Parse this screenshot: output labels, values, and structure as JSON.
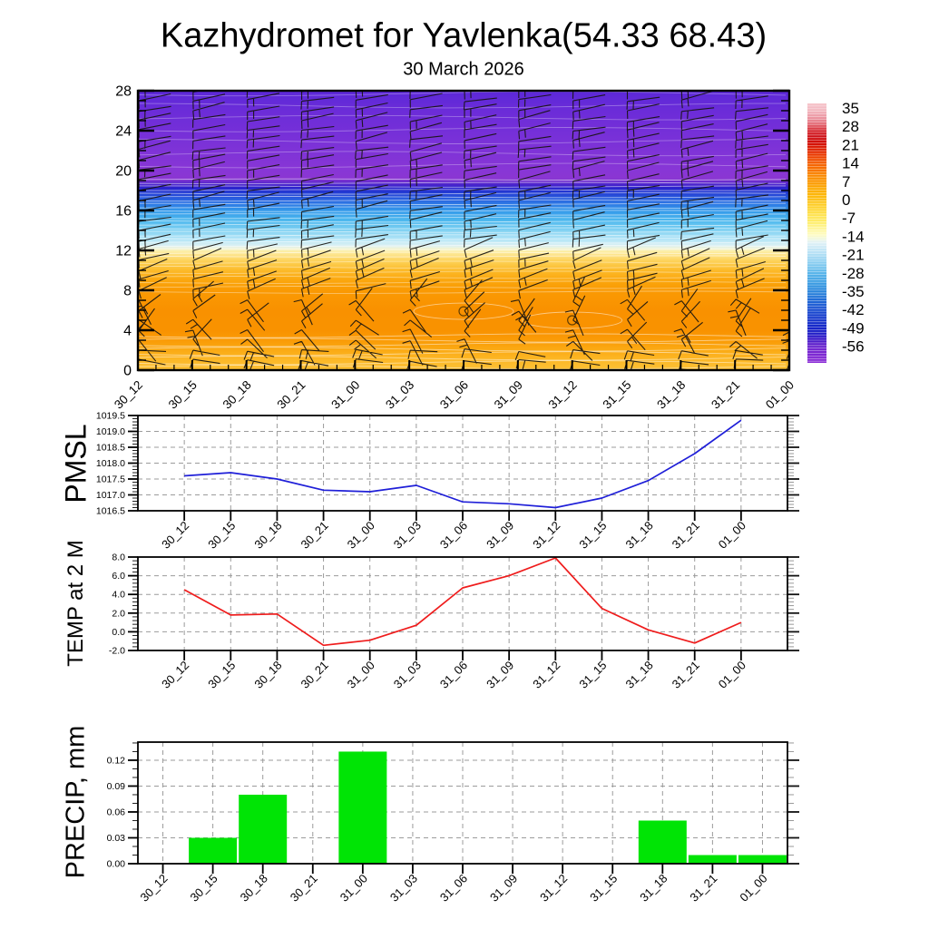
{
  "header": {
    "title": "Kazhydromet for Yavlenka(54.33 68.43)",
    "subtitle": "30 March 2026"
  },
  "time_labels": [
    "30_12",
    "30_15",
    "30_18",
    "30_21",
    "31_00",
    "31_03",
    "31_06",
    "31_09",
    "31_12",
    "31_15",
    "31_18",
    "31_21",
    "01_00"
  ],
  "style": {
    "grid_color": "#9b9b9b",
    "axis_color": "#000000",
    "barb_color": "#17130f",
    "contour_color": "#ffffff"
  },
  "chart_data": [
    {
      "id": "temperature_height_cross_section",
      "type": "heatmap",
      "title": "30 March 2026",
      "x_categories": [
        "30_12",
        "30_15",
        "30_18",
        "30_21",
        "31_00",
        "31_03",
        "31_06",
        "31_09",
        "31_12",
        "31_15",
        "31_18",
        "31_21",
        "01_00"
      ],
      "y_axis": {
        "min": 0,
        "max": 28,
        "tick_labels": [
          "28",
          "24",
          "20",
          "16",
          "12",
          "8",
          "4",
          "0"
        ],
        "minor_step": 1
      },
      "colorbar": {
        "tick_labels": [
          "35",
          "28",
          "21",
          "14",
          "7",
          "0",
          "-7",
          "-14",
          "-21",
          "-28",
          "-35",
          "-42",
          "-49",
          "-56"
        ],
        "gradient_top_to_bottom": [
          [
            0,
            "#f6c6cc"
          ],
          [
            3,
            "#f2b3bc"
          ],
          [
            6,
            "#ea8f9b"
          ],
          [
            8.5,
            "#e05a64"
          ],
          [
            10.5,
            "#d62a31"
          ],
          [
            13,
            "#cd1016"
          ],
          [
            15.5,
            "#d31208"
          ],
          [
            18,
            "#e12500"
          ],
          [
            20.5,
            "#ed4200"
          ],
          [
            23,
            "#f35d00"
          ],
          [
            25.5,
            "#f87500"
          ],
          [
            28,
            "#fa8900"
          ],
          [
            30.5,
            "#fb9900"
          ],
          [
            33,
            "#fcaa00"
          ],
          [
            35.5,
            "#fdb90d"
          ],
          [
            38,
            "#fdc61f"
          ],
          [
            40.5,
            "#fed534"
          ],
          [
            43,
            "#fee24d"
          ],
          [
            45.5,
            "#feec6a"
          ],
          [
            48,
            "#fef594"
          ],
          [
            50.5,
            "#fefbc0"
          ],
          [
            52,
            "#f2f8da"
          ],
          [
            53.5,
            "#e2f2f6"
          ],
          [
            56,
            "#c8e8f6"
          ],
          [
            58.5,
            "#abdcf4"
          ],
          [
            61,
            "#8fd0f1"
          ],
          [
            63.5,
            "#70c2ed"
          ],
          [
            66,
            "#55b2e9"
          ],
          [
            68.5,
            "#3fa1e4"
          ],
          [
            71,
            "#3090df"
          ],
          [
            73.5,
            "#277eda"
          ],
          [
            76,
            "#2169d6"
          ],
          [
            78.5,
            "#1c55d2"
          ],
          [
            81,
            "#1844ce"
          ],
          [
            83.5,
            "#1635cb"
          ],
          [
            86,
            "#1629c9"
          ],
          [
            88.5,
            "#1d1ec7"
          ],
          [
            90.5,
            "#3519c8"
          ],
          [
            92.5,
            "#5b1fcb"
          ],
          [
            95,
            "#7526d0"
          ],
          [
            100,
            "#8c2ed6"
          ]
        ]
      },
      "fill_gradient_top_to_bottom": [
        [
          0,
          "#5b28d8"
        ],
        [
          7,
          "#6b2cd8"
        ],
        [
          14,
          "#742fd8"
        ],
        [
          21,
          "#7e33d7"
        ],
        [
          28.5,
          "#8836d6"
        ],
        [
          31.5,
          "#8a36d2"
        ],
        [
          33.3,
          "#5326cc"
        ],
        [
          34.8,
          "#2a22cc"
        ],
        [
          36.2,
          "#2338d2"
        ],
        [
          39,
          "#2a64e0"
        ],
        [
          42.8,
          "#3398ea"
        ],
        [
          46.4,
          "#4db8ee"
        ],
        [
          50,
          "#82d2f2"
        ],
        [
          53.5,
          "#b8e7f7"
        ],
        [
          55.4,
          "#daf0f3"
        ],
        [
          56.4,
          "#f0f4da"
        ],
        [
          57.5,
          "#fdeea4"
        ],
        [
          59,
          "#fde184"
        ],
        [
          60.8,
          "#fdd35b"
        ],
        [
          64.3,
          "#fcba29"
        ],
        [
          67.8,
          "#fba70e"
        ],
        [
          71.4,
          "#fa9a03"
        ],
        [
          78.5,
          "#f99100"
        ],
        [
          85.7,
          "#f99200"
        ],
        [
          89.3,
          "#fa9b06"
        ],
        [
          92.8,
          "#fbaa14"
        ],
        [
          96.4,
          "#fcb827"
        ],
        [
          100,
          "#fdc136"
        ]
      ],
      "temperature_bands_by_height": [
        {
          "height_range": "19-28",
          "temp_c": "-56 to -63",
          "appearance": "purple"
        },
        {
          "height_range": "17.5-19",
          "temp_c": "-49 to -56",
          "appearance": "dark blue"
        },
        {
          "height_range": "13-17.5",
          "temp_c": "-21 to -49",
          "appearance": "light to mid blue"
        },
        {
          "height_range": "12-13",
          "temp_c": "-7 to -21",
          "appearance": "pale yellow to white"
        },
        {
          "height_range": "0-12",
          "temp_c": "+2 to -7",
          "appearance": "orange"
        }
      ],
      "wind_barbs": {
        "columns": 13,
        "levels": "0-28 step 1"
      },
      "contour_bands": [
        {
          "from": 0.3,
          "to": 3.8,
          "step": 0.45,
          "amp": 2.2,
          "opacity": 0.5
        },
        {
          "from": 7.8,
          "to": 11.2,
          "step": 0.5,
          "amp": 1.2,
          "opacity": 0.4
        },
        {
          "from": 11.4,
          "to": 19.4,
          "step": 0.35,
          "amp": 0.7,
          "opacity": 0.55
        },
        {
          "from": 20.5,
          "to": 27.7,
          "step": 1.2,
          "amp": 2.4,
          "opacity": 0.32
        }
      ],
      "extrema_markers": [
        {
          "x_index": 6,
          "height": 5.9
        },
        {
          "x_index": 8,
          "height": 5.0
        }
      ]
    },
    {
      "id": "pmsl",
      "type": "line",
      "title": "PMSL",
      "x_categories": [
        "30_12",
        "30_15",
        "30_18",
        "30_21",
        "31_00",
        "31_03",
        "31_06",
        "31_09",
        "31_12",
        "31_15",
        "31_18",
        "31_21",
        "01_00"
      ],
      "values": [
        1017.6,
        1017.7,
        1017.5,
        1017.15,
        1017.1,
        1017.3,
        1016.78,
        1016.72,
        1016.6,
        1016.9,
        1017.45,
        1018.3,
        1019.35
      ],
      "ylim": [
        1016.5,
        1019.5
      ],
      "ytick_values": [
        1019.5,
        1019.0,
        1018.5,
        1018.0,
        1017.5,
        1017.0,
        1016.5
      ],
      "ytick_labels": [
        "1019.5",
        "1019.0",
        "1018.5",
        "1018.0",
        "1017.5",
        "1017.0",
        "1016.5"
      ],
      "minor_step": 0.1,
      "line_color": "#1f1fd8"
    },
    {
      "id": "temp_2m",
      "type": "line",
      "title": "TEMP at 2 M",
      "x_categories": [
        "30_12",
        "30_15",
        "30_18",
        "30_21",
        "31_00",
        "31_03",
        "31_06",
        "31_09",
        "31_12",
        "31_15",
        "31_18",
        "31_21",
        "01_00"
      ],
      "values": [
        4.5,
        1.8,
        1.9,
        -1.45,
        -0.9,
        0.7,
        4.7,
        6.0,
        7.9,
        2.5,
        0.2,
        -1.2,
        1.0
      ],
      "ylim": [
        -2.0,
        8.0
      ],
      "ytick_values": [
        8.0,
        6.0,
        4.0,
        2.0,
        0.0,
        -2.0
      ],
      "ytick_labels": [
        "8.0",
        "6.0",
        "4.0",
        "2.0",
        "0.0",
        "-2.0"
      ],
      "minor_step": 0.4,
      "line_color": "#ef1c1c"
    },
    {
      "id": "precip",
      "type": "bar",
      "title": "PRECIP, mm",
      "x_categories": [
        "30_12",
        "30_15",
        "30_18",
        "30_21",
        "31_00",
        "31_03",
        "31_06",
        "31_09",
        "31_12",
        "31_15",
        "31_18",
        "31_21",
        "01_00"
      ],
      "values": [
        0,
        0.03,
        0.08,
        0,
        0.13,
        0,
        0,
        0,
        0,
        0,
        0.05,
        0.01,
        0.01
      ],
      "ylim": [
        0,
        0.141
      ],
      "ytick_values": [
        0.12,
        0.09,
        0.06,
        0.03,
        0.0
      ],
      "ytick_labels": [
        "0.12",
        "0.09",
        "0.06",
        "0.03",
        "0.00"
      ],
      "minor_step": 0.01,
      "bar_color": "#00e405"
    }
  ]
}
